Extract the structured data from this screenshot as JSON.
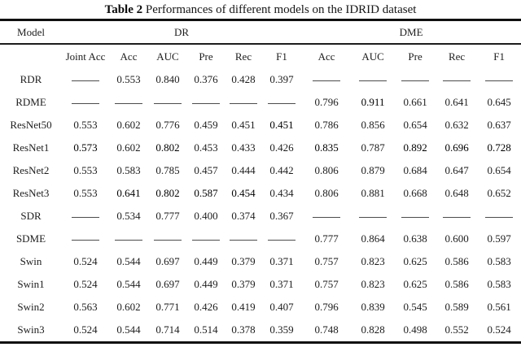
{
  "caption": {
    "label": "Table 2",
    "text": " Performances of different models on the IDRID dataset"
  },
  "table": {
    "dash": "——",
    "group_headers": [
      {
        "label": "Model",
        "span": 1
      },
      {
        "label": "DR",
        "span": 6
      },
      {
        "label": "DME",
        "span": 5
      }
    ],
    "column_headers": [
      "",
      "Joint Acc",
      "Acc",
      "AUC",
      "Pre",
      "Rec",
      "F1",
      "Acc",
      "AUC",
      "Pre",
      "Rec",
      "F1"
    ],
    "rows": [
      {
        "model": "RDR",
        "values": [
          "——",
          "0.553",
          "0.840",
          "0.376",
          "0.428",
          "0.397",
          "——",
          "——",
          "——",
          "——",
          "——"
        ],
        "bold": []
      },
      {
        "model": "RDME",
        "values": [
          "——",
          "——",
          "——",
          "——",
          "——",
          "——",
          "0.796",
          "0.911",
          "0.661",
          "0.641",
          "0.645"
        ],
        "bold": [
          7
        ]
      },
      {
        "model": "ResNet50",
        "values": [
          "0.553",
          "0.602",
          "0.776",
          "0.459",
          "0.451",
          "0.451",
          "0.786",
          "0.856",
          "0.654",
          "0.632",
          "0.637"
        ],
        "bold": [
          5
        ]
      },
      {
        "model": "ResNet1",
        "values": [
          "0.573",
          "0.602",
          "0.802",
          "0.453",
          "0.433",
          "0.426",
          "0.835",
          "0.787",
          "0.892",
          "0.696",
          "0.728"
        ],
        "bold": [
          0,
          2,
          6,
          8,
          9,
          10
        ]
      },
      {
        "model": "ResNet2",
        "values": [
          "0.553",
          "0.583",
          "0.785",
          "0.457",
          "0.444",
          "0.442",
          "0.806",
          "0.879",
          "0.684",
          "0.647",
          "0.654"
        ],
        "bold": []
      },
      {
        "model": "ResNet3",
        "values": [
          "0.553",
          "0.641",
          "0.802",
          "0.587",
          "0.454",
          "0.434",
          "0.806",
          "0.881",
          "0.668",
          "0.648",
          "0.652"
        ],
        "bold": [
          1,
          2,
          3,
          4
        ]
      },
      {
        "model": "SDR",
        "values": [
          "——",
          "0.534",
          "0.777",
          "0.400",
          "0.374",
          "0.367",
          "——",
          "——",
          "——",
          "——",
          "——"
        ],
        "bold": []
      },
      {
        "model": "SDME",
        "values": [
          "——",
          "——",
          "——",
          "——",
          "——",
          "——",
          "0.777",
          "0.864",
          "0.638",
          "0.600",
          "0.597"
        ],
        "bold": []
      },
      {
        "model": "Swin",
        "values": [
          "0.524",
          "0.544",
          "0.697",
          "0.449",
          "0.379",
          "0.371",
          "0.757",
          "0.823",
          "0.625",
          "0.586",
          "0.583"
        ],
        "bold": []
      },
      {
        "model": "Swin1",
        "values": [
          "0.524",
          "0.544",
          "0.697",
          "0.449",
          "0.379",
          "0.371",
          "0.757",
          "0.823",
          "0.625",
          "0.586",
          "0.583"
        ],
        "bold": []
      },
      {
        "model": "Swin2",
        "values": [
          "0.563",
          "0.602",
          "0.771",
          "0.426",
          "0.419",
          "0.407",
          "0.796",
          "0.839",
          "0.545",
          "0.589",
          "0.561"
        ],
        "bold": []
      },
      {
        "model": "Swin3",
        "values": [
          "0.524",
          "0.544",
          "0.714",
          "0.514",
          "0.378",
          "0.359",
          "0.748",
          "0.828",
          "0.498",
          "0.552",
          "0.524"
        ],
        "bold": []
      }
    ]
  }
}
